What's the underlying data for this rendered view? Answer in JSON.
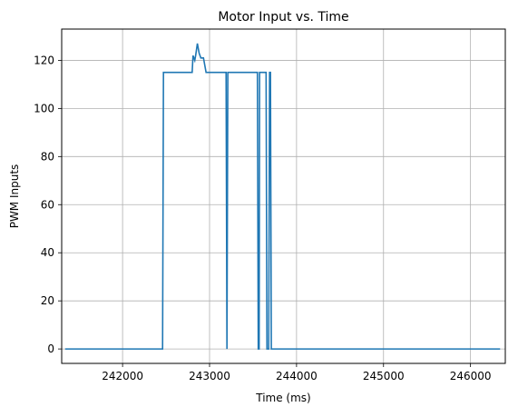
{
  "chart_data": {
    "type": "line",
    "title": "Motor Input vs. Time",
    "xlabel": "Time (ms)",
    "ylabel": "PWM Inputs",
    "xlim": [
      241300,
      246400
    ],
    "ylim": [
      -6,
      133
    ],
    "xticks": [
      242000,
      243000,
      244000,
      245000,
      246000
    ],
    "yticks": [
      0,
      20,
      40,
      60,
      80,
      100,
      120
    ],
    "grid": true,
    "legend": "none",
    "series": [
      {
        "color": "#1f77b4",
        "x": [
          241340,
          242460,
          242470,
          242800,
          242810,
          242830,
          242840,
          242860,
          242880,
          242900,
          242930,
          242960,
          243000,
          243190,
          243200,
          243210,
          243220,
          243550,
          243560,
          243570,
          243575,
          243650,
          243660,
          243680,
          243690,
          243700,
          243710,
          243730,
          243740,
          246340
        ],
        "y": [
          0,
          0,
          115,
          115,
          122,
          120,
          122,
          127,
          123,
          121,
          121,
          115,
          115,
          115,
          0,
          115,
          115,
          115,
          0,
          0,
          115,
          115,
          0,
          0,
          115,
          115,
          0,
          0,
          0,
          0
        ]
      }
    ]
  }
}
